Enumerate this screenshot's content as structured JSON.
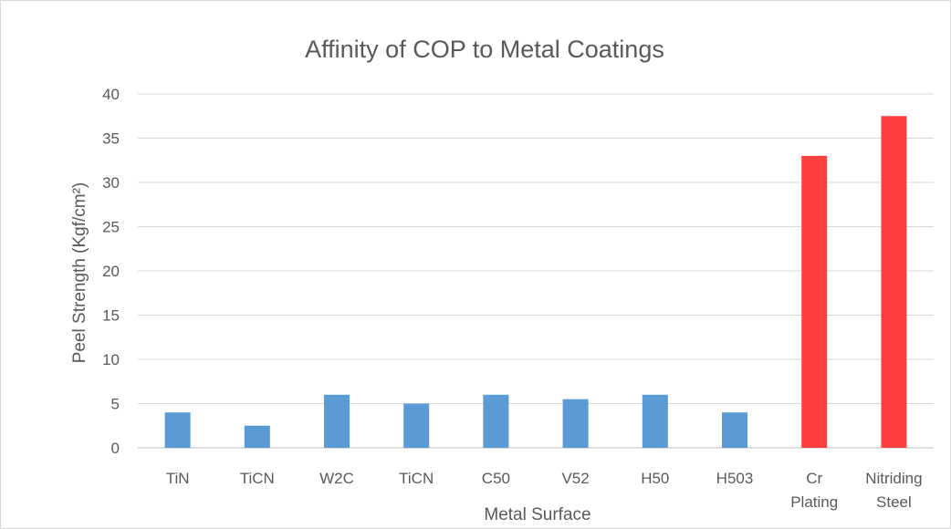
{
  "chart_data": {
    "type": "bar",
    "title": "Affinity of COP to Metal Coatings",
    "xlabel": "Metal Surface",
    "ylabel": "Peel Strength (Kgf/cm²)",
    "ylim": [
      0,
      40
    ],
    "yticks": [
      0,
      5,
      10,
      15,
      20,
      25,
      30,
      35,
      40
    ],
    "categories": [
      [
        "TiN"
      ],
      [
        "TiCN"
      ],
      [
        "W2C"
      ],
      [
        "TiCN"
      ],
      [
        "C50"
      ],
      [
        "V52"
      ],
      [
        "H50"
      ],
      [
        "H503"
      ],
      [
        "Cr",
        "Plating"
      ],
      [
        "Nitriding",
        "Steel"
      ]
    ],
    "values": [
      4,
      2.5,
      6,
      5,
      6,
      5.5,
      6,
      4,
      33,
      37.5
    ],
    "bar_colors": [
      "#5b9bd5",
      "#5b9bd5",
      "#5b9bd5",
      "#5b9bd5",
      "#5b9bd5",
      "#5b9bd5",
      "#5b9bd5",
      "#5b9bd5",
      "#ff4040",
      "#ff4040"
    ],
    "grid": true,
    "legend": "none"
  }
}
